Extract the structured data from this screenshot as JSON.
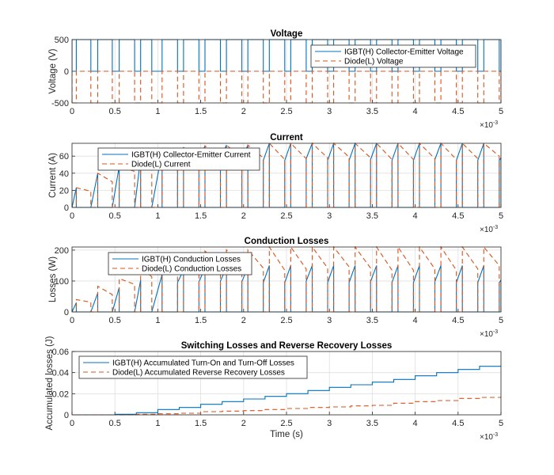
{
  "colors": {
    "igbt": "#0072BD",
    "diode": "#D95319",
    "grid": "#DFDFDF",
    "axis": "#262626"
  },
  "chart_data": [
    {
      "type": "line",
      "id": "voltage",
      "title": "Voltage",
      "ylabel": "Voltage (V)",
      "xlabel": "",
      "xlim": [
        0,
        5
      ],
      "x_multiplier": "×10",
      "x_multiplier_exp": "-3",
      "ylim": [
        -500,
        500
      ],
      "yticks": [
        "-500",
        "0",
        "500"
      ],
      "ytick_values": [
        -500,
        0,
        500
      ],
      "xticks": [
        "0",
        "0.5",
        "1",
        "1.5",
        "2",
        "2.5",
        "3",
        "3.5",
        "4",
        "4.5",
        "5"
      ],
      "grid": true,
      "legend_position": "top-right",
      "series": [
        {
          "name": "IGBT(H) Collector-Emitter Voltage",
          "quantity": "v_igbt",
          "off_value": 500,
          "on_value": 0
        },
        {
          "name": "Diode(L) Voltage",
          "quantity": "v_diode",
          "off_value": 0,
          "on_value": -500
        }
      ]
    },
    {
      "type": "line",
      "id": "current",
      "title": "Current",
      "ylabel": "Current (A)",
      "xlabel": "",
      "xlim": [
        0,
        5
      ],
      "x_multiplier": "×10",
      "x_multiplier_exp": "-3",
      "ylim": [
        0,
        75
      ],
      "yticks": [
        "0",
        "20",
        "40",
        "60"
      ],
      "ytick_values": [
        0,
        20,
        40,
        60
      ],
      "xticks": [
        "0",
        "0.5",
        "1",
        "1.5",
        "2",
        "2.5",
        "3",
        "3.5",
        "4",
        "4.5",
        "5"
      ],
      "grid": true,
      "legend_position": "top-left",
      "series": [
        {
          "name": "IGBT(H) Collector-Emitter Current",
          "quantity": "i_igbt"
        },
        {
          "name": "Diode(L) Current",
          "quantity": "i_diode"
        }
      ]
    },
    {
      "type": "line",
      "id": "conduction",
      "title": "Conduction Losses",
      "ylabel": "Losses (W)",
      "xlabel": "",
      "xlim": [
        0,
        5
      ],
      "x_multiplier": "×10",
      "x_multiplier_exp": "-3",
      "ylim": [
        0,
        210
      ],
      "yticks": [
        "0",
        "100",
        "200"
      ],
      "ytick_values": [
        0,
        100,
        200
      ],
      "xticks": [
        "0",
        "0.5",
        "1",
        "1.5",
        "2",
        "2.5",
        "3",
        "3.5",
        "4",
        "4.5",
        "5"
      ],
      "grid": true,
      "legend_position": "top-left",
      "series": [
        {
          "name": "IGBT(H) Conduction Losses",
          "quantity": "p_igbt"
        },
        {
          "name": "Diode(L) Conduction Losses",
          "quantity": "p_diode"
        }
      ]
    },
    {
      "type": "line",
      "id": "switching",
      "title": "Switching Losses and Reverse Recovery Losses",
      "ylabel": "Accumulated losses (J)",
      "xlabel": "Time (s)",
      "xlim": [
        0,
        5
      ],
      "x_multiplier": "×10",
      "x_multiplier_exp": "-3",
      "ylim": [
        0,
        0.06
      ],
      "yticks": [
        "0",
        "0.02",
        "0.04",
        "0.06"
      ],
      "ytick_values": [
        0,
        0.02,
        0.04,
        0.06
      ],
      "xticks": [
        "0",
        "0.5",
        "1",
        "1.5",
        "2",
        "2.5",
        "3",
        "3.5",
        "4",
        "4.5",
        "5"
      ],
      "grid": true,
      "legend_position": "top-left",
      "series": [
        {
          "name": "IGBT(H) Accumulated Turn-On and Turn-Off Losses",
          "quantity": "e_igbt",
          "x": [
            0,
            0.25,
            0.5,
            0.75,
            1,
            1.25,
            1.5,
            1.75,
            2,
            2.25,
            2.5,
            2.75,
            3,
            3.25,
            3.5,
            3.75,
            4,
            4.25,
            4.5,
            4.75,
            5
          ],
          "y": [
            0,
            0,
            0.0005,
            0.002,
            0.005,
            0.007,
            0.01,
            0.0125,
            0.015,
            0.0175,
            0.02,
            0.023,
            0.026,
            0.0285,
            0.031,
            0.0335,
            0.037,
            0.04,
            0.043,
            0.046,
            0.047
          ]
        },
        {
          "name": "Diode(L) Accumulated Reverse Recovery Losses",
          "quantity": "e_diode",
          "x": [
            0,
            0.25,
            0.5,
            0.75,
            1,
            1.25,
            1.5,
            1.75,
            2,
            2.25,
            2.5,
            2.75,
            3,
            3.25,
            3.5,
            3.75,
            4,
            4.25,
            4.5,
            4.75,
            5
          ],
          "y": [
            0,
            0,
            0,
            0.0005,
            0.001,
            0.0015,
            0.003,
            0.0035,
            0.004,
            0.005,
            0.006,
            0.007,
            0.0075,
            0.0085,
            0.009,
            0.011,
            0.0125,
            0.0135,
            0.0155,
            0.0165,
            0.018
          ]
        }
      ]
    }
  ],
  "switching_cycles": {
    "time_unit": "ms",
    "columns": [
      "t_on",
      "t_off",
      "i_start",
      "i_peak",
      "i_end",
      "p_igbt_start",
      "p_igbt_peak",
      "p_diode_start",
      "p_diode_end"
    ],
    "rows": [
      [
        0,
        0.05,
        0,
        23,
        19,
        0,
        30,
        40,
        31.5
      ],
      [
        0.22,
        0.3,
        0,
        40,
        30,
        0,
        61,
        83,
        56
      ],
      [
        0.47,
        0.55,
        0,
        48,
        42,
        0,
        79,
        108,
        89
      ],
      [
        0.73,
        0.8,
        0,
        58,
        50,
        0,
        103,
        142,
        114
      ],
      [
        0.93,
        1.05,
        0,
        65,
        58,
        0,
        121,
        169,
        142
      ],
      [
        1.23,
        1.3,
        55,
        70,
        58,
        95,
        135,
        189,
        142
      ],
      [
        1.48,
        1.55,
        56,
        72,
        60,
        98,
        141,
        197,
        150
      ],
      [
        1.73,
        1.8,
        57,
        73,
        58,
        100,
        144,
        201,
        142
      ],
      [
        1.98,
        2.05,
        56,
        73,
        58,
        98,
        144,
        201,
        142
      ],
      [
        2.23,
        2.3,
        55,
        75,
        56,
        95,
        150,
        210,
        135
      ],
      [
        2.48,
        2.55,
        55,
        75,
        57,
        95,
        150,
        210,
        139
      ],
      [
        2.73,
        2.8,
        57,
        75,
        58,
        100,
        150,
        210,
        142
      ],
      [
        2.98,
        3.05,
        55,
        75,
        59,
        95,
        150,
        210,
        146
      ],
      [
        3.23,
        3.3,
        55,
        75,
        58,
        95,
        150,
        210,
        142
      ],
      [
        3.48,
        3.55,
        56,
        75,
        56,
        98,
        150,
        210,
        135
      ],
      [
        3.73,
        3.8,
        55,
        75,
        56,
        95,
        150,
        210,
        135
      ],
      [
        3.98,
        4.05,
        55,
        75,
        57,
        95,
        150,
        210,
        139
      ],
      [
        4.23,
        4.3,
        56,
        75,
        56,
        98,
        150,
        210,
        135
      ],
      [
        4.48,
        4.55,
        55,
        75,
        57,
        95,
        150,
        210,
        139
      ],
      [
        4.73,
        4.8,
        55,
        75,
        60,
        95,
        150,
        210,
        150
      ],
      [
        4.98,
        5.0,
        55,
        58,
        null,
        95,
        103,
        null,
        null
      ]
    ]
  }
}
